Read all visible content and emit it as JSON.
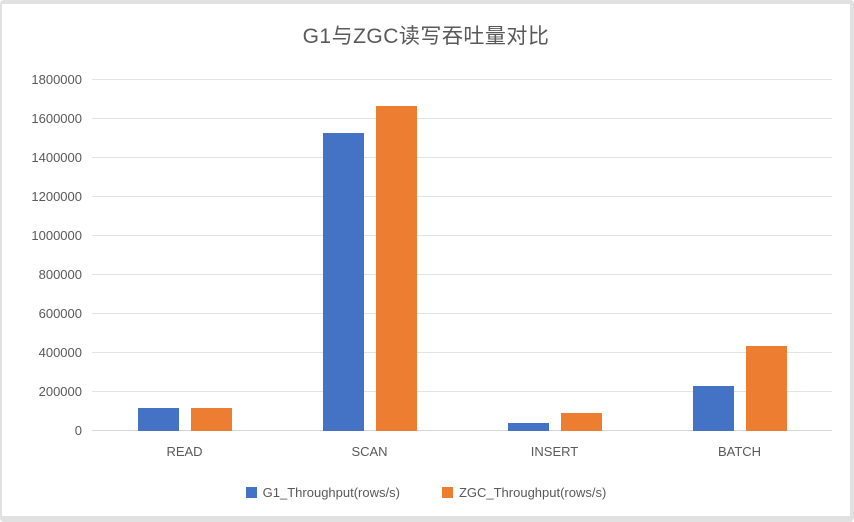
{
  "chart_data": {
    "type": "bar",
    "title": "G1与ZGC读写吞吐量对比",
    "categories": [
      "READ",
      "SCAN",
      "INSERT",
      "BATCH"
    ],
    "series": [
      {
        "name": "G1_Throughput(rows/s)",
        "color": "#4472C4",
        "values": [
          120000,
          1530000,
          40000,
          230000
        ]
      },
      {
        "name": "ZGC_Throughput(rows/s)",
        "color": "#ED7D31",
        "values": [
          120000,
          1665000,
          90000,
          435000
        ]
      }
    ],
    "xlabel": "",
    "ylabel": "",
    "ylim": [
      0,
      1800000
    ],
    "yticks": [
      0,
      200000,
      400000,
      600000,
      800000,
      1000000,
      1200000,
      1400000,
      1600000,
      1800000
    ],
    "grid": true,
    "legend_position": "bottom",
    "colors": {
      "text": "#595959",
      "gridline": "#e3e3e3",
      "axis_line": "#d6d6d6",
      "background": "#ffffff",
      "border": "#e1e1e1"
    }
  }
}
